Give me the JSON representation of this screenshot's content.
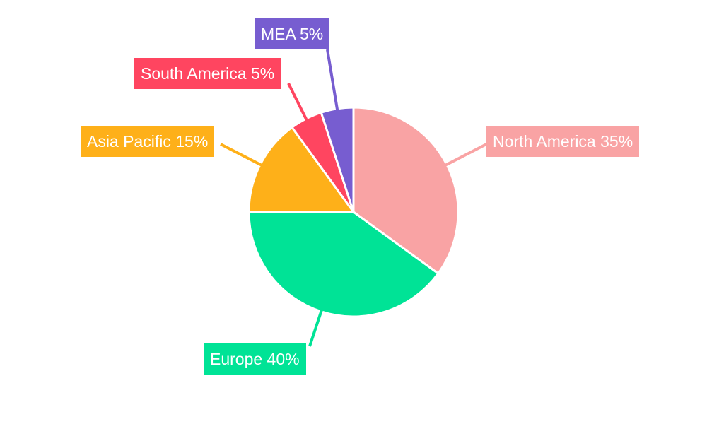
{
  "chart_data": {
    "type": "pie",
    "title": "",
    "start_angle": "top, clockwise",
    "legend": "none",
    "slices": [
      {
        "label": "North America",
        "value": 35,
        "display": "North America 35%",
        "color": "#F9A3A4"
      },
      {
        "label": "Europe",
        "value": 40,
        "display": "Europe 40%",
        "color": "#00E396"
      },
      {
        "label": "Asia Pacific",
        "value": 15,
        "display": "Asia Pacific 15%",
        "color": "#FEB019"
      },
      {
        "label": "South America",
        "value": 5,
        "display": "South America 5%",
        "color": "#FF4560"
      },
      {
        "label": "MEA",
        "value": 5,
        "display": "MEA 5%",
        "color": "#775DD0"
      }
    ]
  }
}
